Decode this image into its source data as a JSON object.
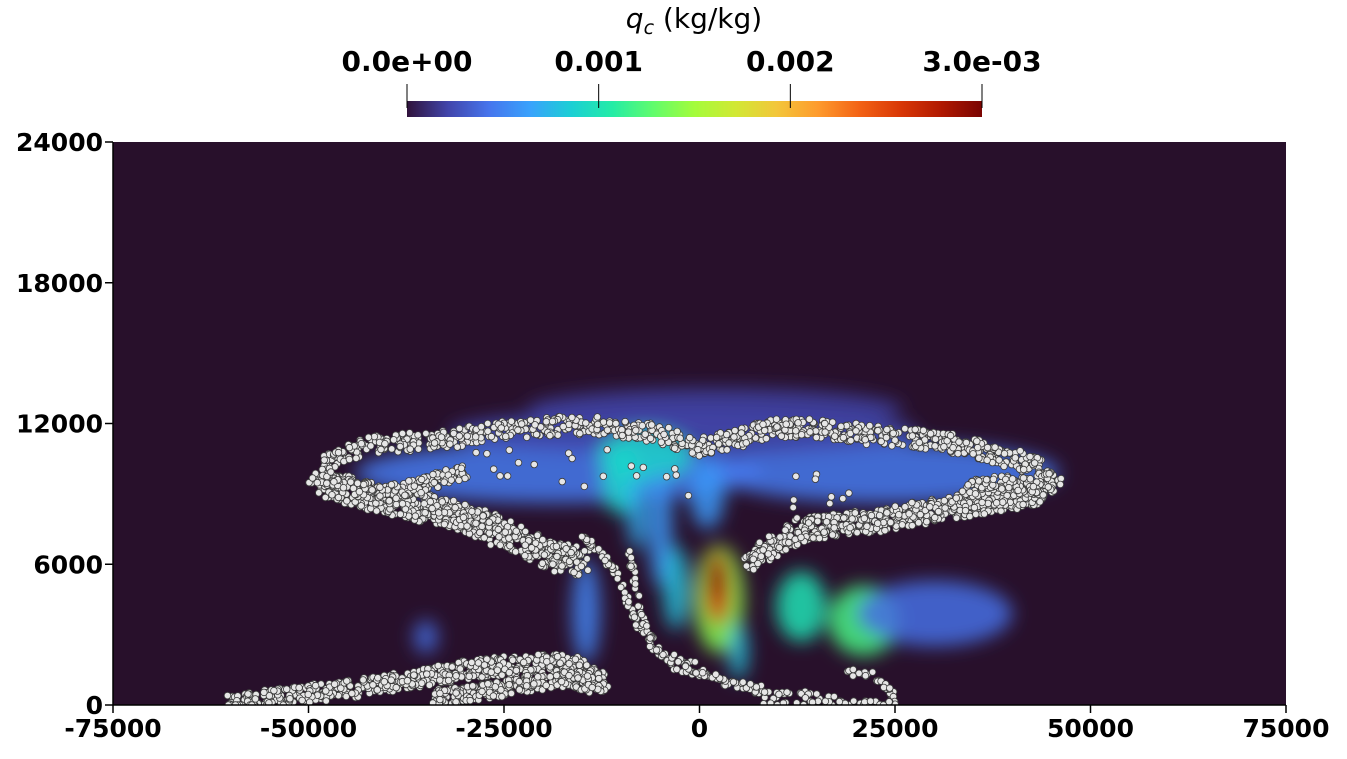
{
  "chart_data": {
    "type": "heatmap",
    "title": "",
    "colorbar": {
      "title_symbol": "q",
      "title_subscript": "c",
      "title_unit": " (kg/kg)",
      "range": [
        0.0,
        0.003
      ],
      "ticks": [
        0.0,
        0.001,
        0.002,
        0.003
      ],
      "tick_labels": [
        "0.0e+00",
        "0.001",
        "0.002",
        "3.0e-03"
      ],
      "colormap": "turbo",
      "colors": [
        "#30123b",
        "#4145ab",
        "#4675ed",
        "#39a2fc",
        "#1bcfd4",
        "#24eca6",
        "#61fc6c",
        "#a4fc3b",
        "#d1e834",
        "#f3c63a",
        "#fe9b2d",
        "#f36315",
        "#d93806",
        "#b11901",
        "#7a0402"
      ]
    },
    "background_color": "#28102b",
    "xlim": [
      -75000,
      75000
    ],
    "ylim": [
      0,
      24000
    ],
    "x_ticks": [
      -75000,
      -50000,
      -25000,
      0,
      25000,
      50000,
      75000
    ],
    "x_tick_labels": [
      "-75000",
      "-50000",
      "-25000",
      "0",
      "25000",
      "50000",
      "75000"
    ],
    "y_ticks": [
      0,
      6000,
      12000,
      18000,
      24000
    ],
    "y_tick_labels": [
      "0",
      "6000",
      "12000",
      "18000",
      "24000"
    ],
    "xlabel": "",
    "ylabel": "",
    "field_blobs": [
      {
        "x": -18000,
        "y": 9900,
        "rx": 26000,
        "ry": 1300,
        "value": 0.00045
      },
      {
        "x": 24000,
        "y": 9900,
        "rx": 22000,
        "ry": 1300,
        "value": 0.00045
      },
      {
        "x": -2000,
        "y": 11600,
        "rx": 30000,
        "ry": 1000,
        "value": 0.00025
      },
      {
        "x": 2000,
        "y": 12600,
        "rx": 24000,
        "ry": 900,
        "value": 0.0002
      },
      {
        "x": -7000,
        "y": 10600,
        "rx": 6000,
        "ry": 1100,
        "value": 0.0009
      },
      {
        "x": -10000,
        "y": 9600,
        "rx": 2500,
        "ry": 1500,
        "value": 0.0009
      },
      {
        "x": -8000,
        "y": 8200,
        "rx": 1200,
        "ry": 1600,
        "value": 0.0007
      },
      {
        "x": -5000,
        "y": 7500,
        "rx": 1500,
        "ry": 2500,
        "value": 0.0006
      },
      {
        "x": -3000,
        "y": 5000,
        "rx": 1600,
        "ry": 1800,
        "value": 0.0008
      },
      {
        "x": 1000,
        "y": 9000,
        "rx": 2200,
        "ry": 1500,
        "value": 0.0006
      },
      {
        "x": 2500,
        "y": 4500,
        "rx": 3200,
        "ry": 2300,
        "value": 0.0014
      },
      {
        "x": 2300,
        "y": 5000,
        "rx": 1800,
        "ry": 1600,
        "value": 0.0026
      },
      {
        "x": 2200,
        "y": 5400,
        "rx": 1100,
        "ry": 900,
        "value": 0.003
      },
      {
        "x": 5000,
        "y": 2300,
        "rx": 1200,
        "ry": 1200,
        "value": 0.0008
      },
      {
        "x": -14500,
        "y": 4000,
        "rx": 1800,
        "ry": 2200,
        "value": 0.0005
      },
      {
        "x": 13000,
        "y": 4200,
        "rx": 3200,
        "ry": 1500,
        "value": 0.001
      },
      {
        "x": 21000,
        "y": 3600,
        "rx": 4500,
        "ry": 1500,
        "value": 0.0012
      },
      {
        "x": 30000,
        "y": 3900,
        "rx": 10000,
        "ry": 1400,
        "value": 0.0004
      },
      {
        "x": -35000,
        "y": 2900,
        "rx": 1500,
        "ry": 700,
        "value": 0.0004
      }
    ],
    "particle_clusters": [
      {
        "path": [
          [
            -48000,
            10400
          ],
          [
            -42000,
            11100
          ],
          [
            -33000,
            11300
          ],
          [
            -25000,
            11700
          ],
          [
            -18000,
            11900
          ],
          [
            -12000,
            11900
          ],
          [
            -6000,
            11600
          ],
          [
            0,
            11000
          ],
          [
            4000,
            11300
          ],
          [
            9000,
            11800
          ],
          [
            15000,
            11800
          ],
          [
            22000,
            11500
          ],
          [
            30000,
            11300
          ],
          [
            38000,
            10700
          ],
          [
            43000,
            10200
          ],
          [
            45500,
            9600
          ]
        ],
        "spread": 400,
        "count": 900
      },
      {
        "path": [
          [
            -49000,
            9600
          ],
          [
            -44000,
            9000
          ],
          [
            -38000,
            8600
          ],
          [
            -32000,
            8200
          ],
          [
            -27000,
            7600
          ],
          [
            -22000,
            6800
          ],
          [
            -18000,
            6300
          ],
          [
            -15000,
            6100
          ]
        ],
        "spread": 600,
        "count": 750
      },
      {
        "path": [
          [
            45500,
            9600
          ],
          [
            42000,
            8900
          ],
          [
            36000,
            8600
          ],
          [
            30000,
            8300
          ],
          [
            24000,
            7900
          ],
          [
            18000,
            7700
          ],
          [
            13000,
            7500
          ],
          [
            9000,
            6700
          ],
          [
            6000,
            6200
          ]
        ],
        "spread": 500,
        "count": 700
      },
      {
        "path": [
          [
            -48000,
            9800
          ],
          [
            -45000,
            9300
          ],
          [
            -40000,
            9000
          ],
          [
            -35000,
            9400
          ],
          [
            -30000,
            10000
          ]
        ],
        "spread": 350,
        "count": 180
      },
      {
        "path": [
          [
            34000,
            9200
          ],
          [
            38000,
            9500
          ],
          [
            42000,
            9400
          ],
          [
            44000,
            9100
          ]
        ],
        "spread": 300,
        "count": 100
      },
      {
        "path": [
          [
            -60000,
            0
          ],
          [
            -52000,
            400
          ],
          [
            -44000,
            700
          ],
          [
            -36000,
            1100
          ],
          [
            -30000,
            1500
          ],
          [
            -24000,
            1700
          ],
          [
            -19000,
            1800
          ],
          [
            -16000,
            1700
          ],
          [
            -12000,
            900
          ]
        ],
        "spread": 400,
        "count": 650
      },
      {
        "path": [
          [
            -34000,
            300
          ],
          [
            -27000,
            600
          ],
          [
            -22000,
            900
          ],
          [
            -17000,
            1100
          ],
          [
            -13000,
            800
          ]
        ],
        "spread": 350,
        "count": 300
      },
      {
        "path": [
          [
            -15000,
            7300
          ],
          [
            -11000,
            5900
          ],
          [
            -9000,
            4300
          ],
          [
            -7000,
            2800
          ],
          [
            -3000,
            1600
          ],
          [
            1000,
            1300
          ]
        ],
        "spread": 200,
        "count": 90
      },
      {
        "path": [
          [
            -9000,
            6500
          ],
          [
            -8000,
            4800
          ],
          [
            -7000,
            3400
          ],
          [
            -5000,
            2200
          ],
          [
            -1000,
            1800
          ],
          [
            3000,
            1000
          ],
          [
            7000,
            600
          ],
          [
            10000,
            300
          ]
        ],
        "spread": 150,
        "count": 70
      },
      {
        "path": [
          [
            -3000,
            1800
          ],
          [
            2000,
            1200
          ],
          [
            8000,
            700
          ],
          [
            14000,
            400
          ],
          [
            19000,
            200
          ]
        ],
        "spread": 150,
        "count": 50
      },
      {
        "path": [
          [
            19000,
            1400
          ],
          [
            22000,
            1300
          ],
          [
            24000,
            800
          ],
          [
            25000,
            200
          ]
        ],
        "spread": 150,
        "count": 35
      },
      {
        "path": [
          [
            8000,
            0
          ],
          [
            14000,
            50
          ],
          [
            20000,
            100
          ],
          [
            25000,
            50
          ]
        ],
        "spread": 100,
        "count": 40
      },
      {
        "path": [
          [
            -10000,
            11000
          ],
          [
            -20000,
            10500
          ],
          [
            -30000,
            10200
          ],
          [
            4000,
            9200
          ],
          [
            12000,
            9100
          ],
          [
            20000,
            9300
          ]
        ],
        "spread": 700,
        "count": 30
      }
    ]
  }
}
